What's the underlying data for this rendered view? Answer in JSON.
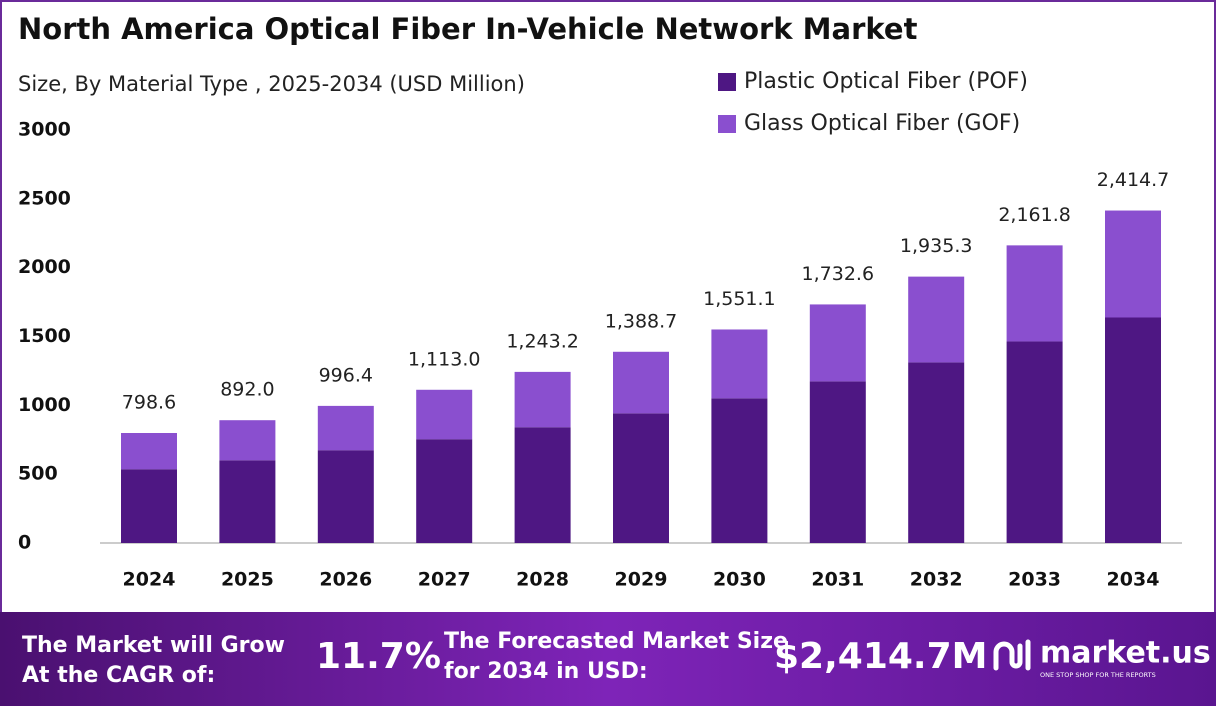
{
  "chart_data": {
    "type": "stacked_bar",
    "title": "North America Optical Fiber In-Vehicle Network Market",
    "subtitle": "Size, By Material Type , 2025-2034 (USD Million)",
    "categories": [
      "2024",
      "2025",
      "2026",
      "2027",
      "2028",
      "2029",
      "2030",
      "2031",
      "2032",
      "2033",
      "2034"
    ],
    "series": [
      {
        "name": "Plastic Optical Fiber (POF)",
        "color": "#4e1783",
        "values": [
          536,
          601,
          674,
          754,
          841,
          942,
          1051,
          1174,
          1312,
          1464,
          1638
        ]
      },
      {
        "name": "Glass Optical Fiber (GOF)",
        "color": "#8a4fcf",
        "values": [
          263,
          291,
          322,
          359,
          402,
          447,
          500,
          559,
          623,
          698,
          777
        ]
      }
    ],
    "totals": {
      "values": [
        798.6,
        892.0,
        996.4,
        1113.0,
        1243.2,
        1388.7,
        1551.1,
        1732.6,
        1935.3,
        2161.8,
        2414.7
      ],
      "value_labels": [
        "798.6",
        "892.0",
        "996.4",
        "1,113.0",
        "1,243.2",
        "1,388.7",
        "1,551.1",
        "1,732.6",
        "1,935.3",
        "2,161.8",
        "2,414.7"
      ]
    },
    "ylim": [
      0,
      3000
    ],
    "yticks": [
      0,
      500,
      1000,
      1500,
      2000,
      2500,
      3000
    ],
    "grid": false,
    "legend": "top-right"
  },
  "footer": {
    "cagr_text": "The Market will Grow At the CAGR of:",
    "cagr_value": "11.7%",
    "forecast_text": "The Forecasted Market Size for 2034 in USD:",
    "forecast_value": "$2,414.7M",
    "logo": "market.us",
    "logo_tagline": "ONE STOP SHOP FOR THE REPORTS"
  }
}
